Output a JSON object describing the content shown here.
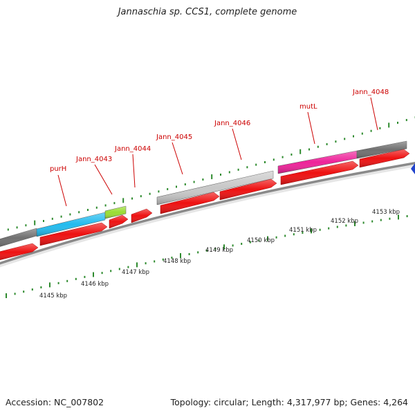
{
  "title": "Jannaschia sp. CCS1, complete genome",
  "footer": {
    "accession": "Accession: NC_007802",
    "summary": "Topology: circular; Length: 4,317,977 bp; Genes: 4,264"
  },
  "colors": {
    "cds": "#ee1111",
    "gene_blue": "#22bbee",
    "gene_green": "#99dd33",
    "gene_magenta": "#ee2299",
    "gene_gray_light": "#c8c8c8",
    "gene_gray_dark": "#707070",
    "tick": "#2d8a2d",
    "label": "#cc0000",
    "backbone": "#8a8a8a"
  },
  "gene_labels": [
    "purH",
    "Jann_4043",
    "Jann_4044",
    "Jann_4045",
    "Jann_4046",
    "mutL",
    "Jann_4048"
  ],
  "kbp_labels": [
    "4145 kbp",
    "4146 kbp",
    "4147 kbp",
    "4148 kbp",
    "4149 kbp",
    "4150 kbp",
    "4151 kbp",
    "4152 kbp",
    "4153 kbp"
  ]
}
